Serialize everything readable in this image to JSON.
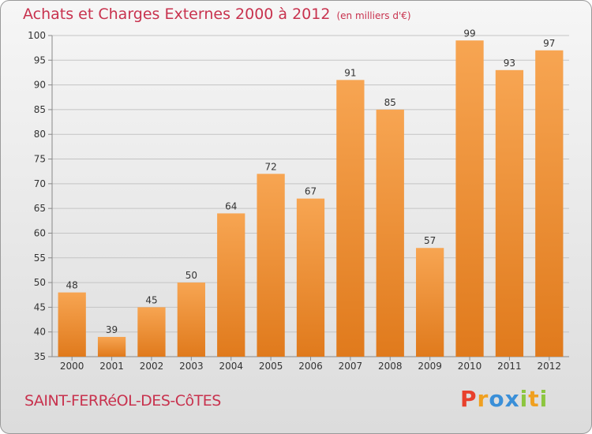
{
  "title": "Achats et Charges Externes 2000 à 2012",
  "unit": "(en milliers d'€)",
  "commune": "SAINT-FERRéOL-DES-CôTES",
  "logo": "Proxiti",
  "colors": {
    "title": "#c8324e",
    "bar_light": "#f7a552",
    "bar_dark": "#e07a1c",
    "logo_letters": [
      "#e8402c",
      "#f0a020",
      "#3a8fd8",
      "#3a8fd8",
      "#8cc63f",
      "#f0a020",
      "#8cc63f"
    ]
  },
  "chart_data": {
    "type": "bar",
    "categories": [
      "2000",
      "2001",
      "2002",
      "2003",
      "2004",
      "2005",
      "2006",
      "2007",
      "2008",
      "2009",
      "2010",
      "2011",
      "2012"
    ],
    "values": [
      48,
      39,
      45,
      50,
      64,
      72,
      67,
      91,
      85,
      57,
      99,
      93,
      97
    ],
    "ylim": [
      35,
      100
    ],
    "yticks": [
      35,
      40,
      45,
      50,
      55,
      60,
      65,
      70,
      75,
      80,
      85,
      90,
      95,
      100
    ],
    "grid": true,
    "data_labels": true
  }
}
